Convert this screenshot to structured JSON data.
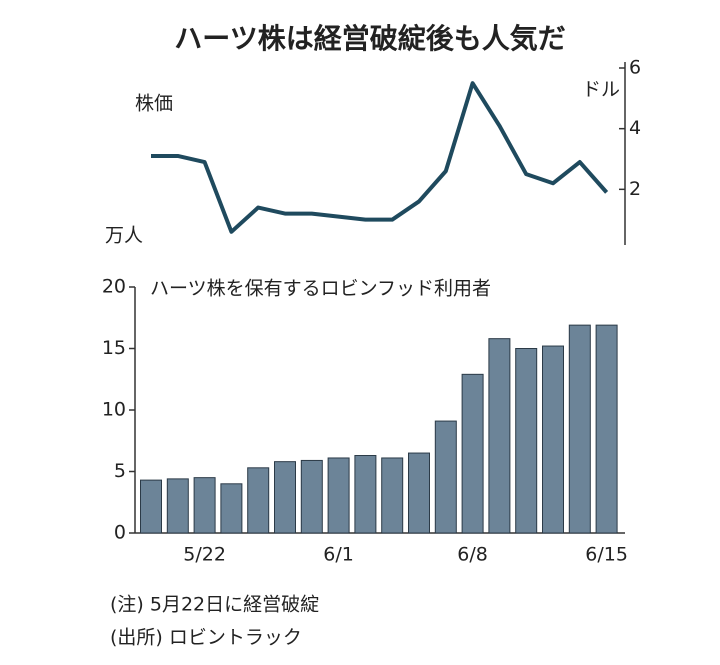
{
  "title": "ハーツ株は経営破綻後も人気だ",
  "notes": [
    "(注) 5月22日に経営破綻",
    "(出所) ロビントラック"
  ],
  "chart_data": [
    {
      "type": "line",
      "series": [
        {
          "name": "株価",
          "color": "#1f4a5e",
          "axis": "y2",
          "values": [
            3.1,
            3.1,
            2.9,
            0.6,
            1.4,
            1.2,
            1.2,
            1.1,
            1.0,
            1.0,
            1.6,
            2.6,
            5.5,
            4.1,
            2.5,
            2.2,
            2.9,
            1.9
          ]
        }
      ],
      "y2label": "ドル",
      "y2lim": [
        0,
        6
      ],
      "y2ticks": [
        2,
        4,
        6
      ]
    },
    {
      "type": "bar",
      "categories": [
        null,
        null,
        "5/22",
        null,
        null,
        null,
        null,
        "6/1",
        null,
        null,
        null,
        null,
        "6/8",
        null,
        null,
        null,
        null,
        "6/15"
      ],
      "series": [
        {
          "name": "ハーツ株を保有するロビンフッド利用者",
          "color": "#6c8498",
          "values": [
            4.3,
            4.4,
            4.5,
            4.0,
            5.3,
            5.8,
            5.9,
            6.1,
            6.3,
            6.1,
            6.5,
            9.1,
            12.9,
            15.8,
            15.0,
            15.2,
            16.9,
            16.9
          ]
        }
      ],
      "ylabel": "万人",
      "ylim": [
        0,
        20
      ],
      "yticks": [
        0,
        5,
        10,
        15,
        20
      ]
    }
  ]
}
